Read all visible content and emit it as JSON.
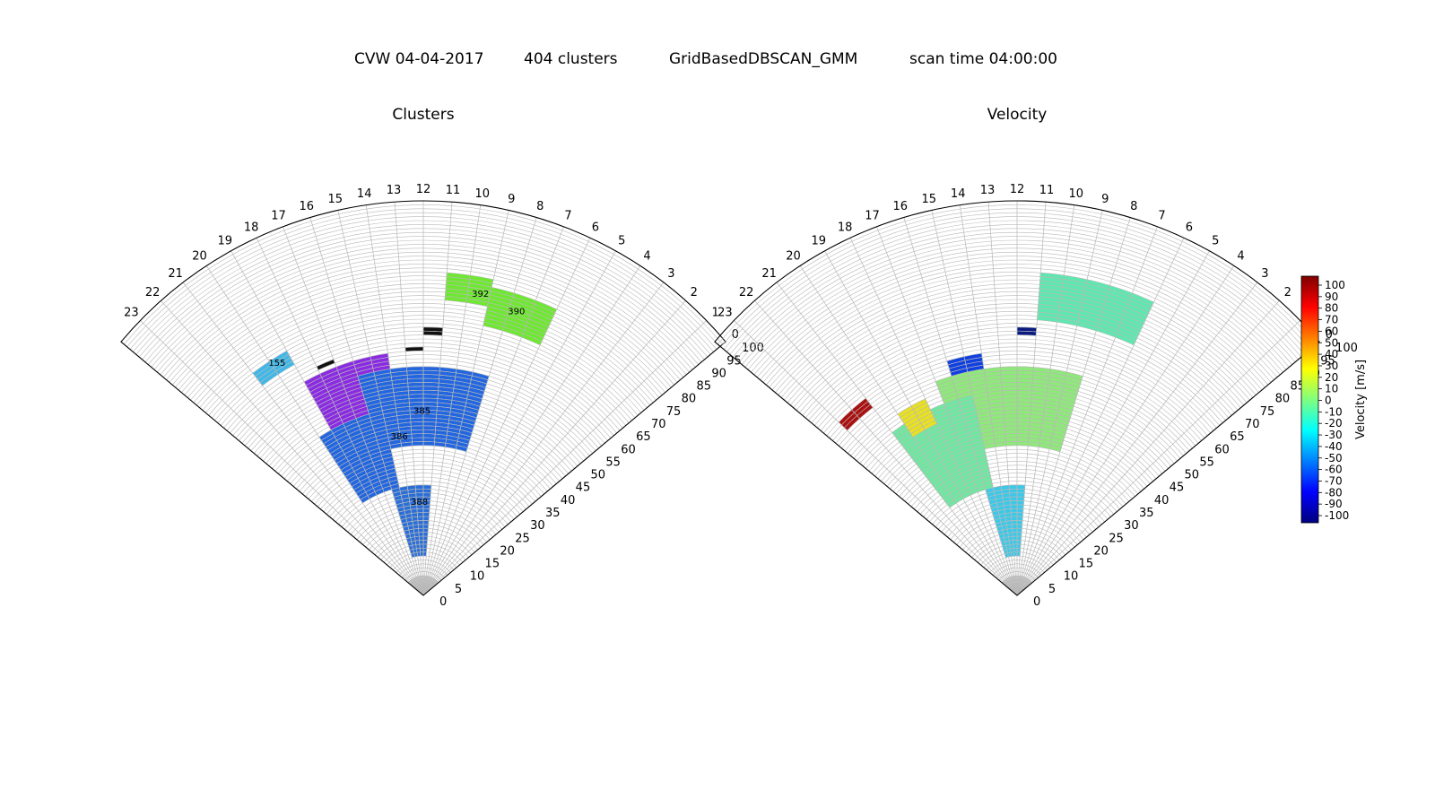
{
  "header": {
    "site_date": "CVW 04-04-2017",
    "cluster_count": "404 clusters",
    "algorithm": "GridBasedDBSCAN_GMM",
    "scan_time": "scan time 04:00:00"
  },
  "colors": {
    "grid": "#b8b8b8",
    "frame": "#000000",
    "cell_edge": "#bdbdbd",
    "origin_fill": "#c8c8c8"
  },
  "chart_data": [
    {
      "type": "polar-sector",
      "title": "Clusters",
      "beams": [
        0,
        1,
        2,
        3,
        4,
        5,
        6,
        7,
        8,
        9,
        10,
        11,
        12,
        13,
        14,
        15,
        16,
        17,
        18,
        19,
        20,
        21,
        22,
        23
      ],
      "beam_angle_deg": {
        "beam0": 40,
        "beam23": 140
      },
      "range_gates": [
        0,
        5,
        10,
        15,
        20,
        25,
        30,
        35,
        40,
        45,
        50,
        55,
        60,
        65,
        70,
        75,
        80,
        85,
        90,
        95,
        100
      ],
      "r_range": [
        0,
        100
      ],
      "grid": true,
      "cluster_labels": [
        {
          "label": "392",
          "beam": 9.4,
          "gate": 77
        },
        {
          "label": "390",
          "beam": 7.6,
          "gate": 75
        },
        {
          "label": "155",
          "beam": 19.8,
          "gate": 69
        },
        {
          "label": "385",
          "beam": 12.1,
          "gate": 46
        },
        {
          "label": "386",
          "beam": 14.1,
          "gate": 40
        },
        {
          "label": "388",
          "beam": 12.6,
          "gate": 23
        }
      ],
      "regions": [
        {
          "cluster": "390",
          "color": "#6ee830",
          "beams": [
            6,
            8
          ],
          "gates": [
            70,
            80
          ]
        },
        {
          "cluster": "392",
          "color": "#6ee830",
          "beams": [
            9,
            10
          ],
          "gates": [
            75,
            82
          ]
        },
        {
          "cluster": "155",
          "color": "#3fb8e8",
          "beams": [
            19,
            20
          ],
          "gates": [
            67,
            71
          ]
        },
        {
          "cluster": "purple",
          "color": "#8a2be2",
          "beams": [
            14,
            18
          ],
          "gates": [
            48,
            62
          ]
        },
        {
          "cluster": "385",
          "color": "#2266e0",
          "beams": [
            8,
            15
          ],
          "gates": [
            38,
            58
          ]
        },
        {
          "cluster": "386",
          "color": "#2266e0",
          "beams": [
            15,
            19
          ],
          "gates": [
            28,
            48
          ]
        },
        {
          "cluster": "388",
          "color": "#2a6fd8",
          "beams": [
            11,
            15
          ],
          "gates": [
            10,
            28
          ]
        },
        {
          "cluster": "noise",
          "color": "#111111",
          "beams": [
            17,
            17
          ],
          "gates": [
            63,
            64
          ]
        },
        {
          "cluster": "noise",
          "color": "#111111",
          "beams": [
            12,
            12
          ],
          "gates": [
            62,
            63
          ]
        },
        {
          "cluster": "noise",
          "color": "#111111",
          "beams": [
            11,
            11
          ],
          "gates": [
            66,
            68
          ]
        }
      ]
    },
    {
      "type": "polar-sector",
      "title": "Velocity",
      "beams": [
        0,
        1,
        2,
        3,
        4,
        5,
        6,
        7,
        8,
        9,
        10,
        11,
        12,
        13,
        14,
        15,
        16,
        17,
        18,
        19,
        20,
        21,
        22,
        23
      ],
      "beam_angle_deg": {
        "beam0": 40,
        "beam23": 140
      },
      "range_gates": [
        0,
        5,
        10,
        15,
        20,
        25,
        30,
        35,
        40,
        45,
        50,
        55,
        60,
        65,
        70,
        75,
        80,
        85,
        90,
        95,
        100
      ],
      "r_range": [
        0,
        100
      ],
      "grid": true,
      "regions": [
        {
          "velocity": -15,
          "color": "#5ee8b0",
          "beams": [
            6,
            10
          ],
          "gates": [
            70,
            82
          ]
        },
        {
          "velocity": 0,
          "color": "#8ee87a",
          "beams": [
            8,
            16
          ],
          "gates": [
            38,
            58
          ]
        },
        {
          "velocity": -10,
          "color": "#6ee8a0",
          "beams": [
            15,
            20
          ],
          "gates": [
            28,
            52
          ]
        },
        {
          "velocity": -35,
          "color": "#3cc8e8",
          "beams": [
            11,
            15
          ],
          "gates": [
            10,
            28
          ]
        },
        {
          "velocity": 100,
          "color": "#aa1010",
          "beams": [
            21,
            22
          ],
          "gates": [
            60,
            63
          ]
        },
        {
          "velocity": 30,
          "color": "#e8e020",
          "beams": [
            18,
            19
          ],
          "gates": [
            48,
            55
          ]
        },
        {
          "velocity": -70,
          "color": "#1040e0",
          "beams": [
            14,
            15
          ],
          "gates": [
            58,
            62
          ]
        },
        {
          "velocity": -100,
          "color": "#0a1a80",
          "beams": [
            11,
            11
          ],
          "gates": [
            66,
            68
          ]
        }
      ],
      "colorbar": {
        "label": "Velocity [m/s]",
        "ticks": [
          "100",
          "90",
          "80",
          "70",
          "60",
          "50",
          "40",
          "30",
          "20",
          "10",
          "0",
          "-10",
          "-20",
          "-30",
          "-40",
          "-50",
          "-60",
          "-70",
          "-80",
          "-90",
          "-100"
        ],
        "range": [
          -100,
          100
        ],
        "colormap": "jet"
      }
    }
  ]
}
